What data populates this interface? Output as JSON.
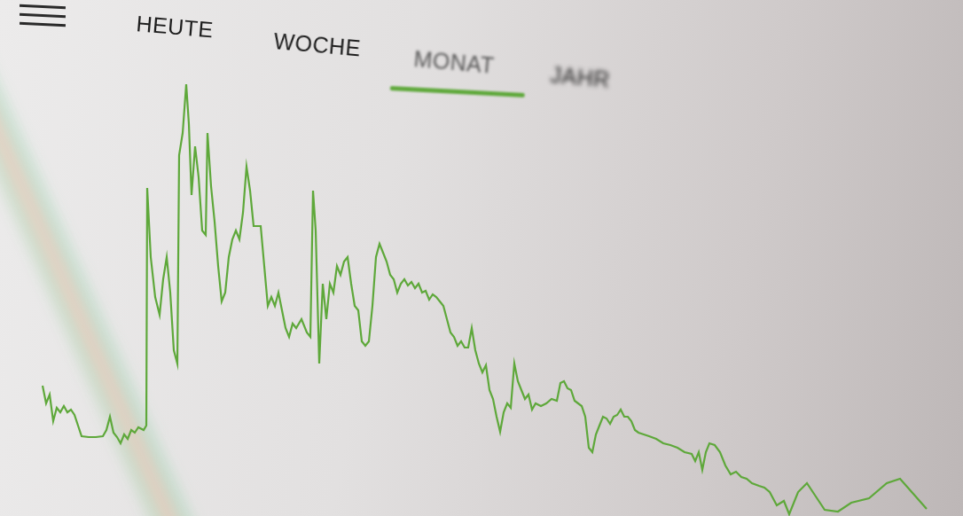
{
  "header": {
    "tabs": [
      "HEUTE",
      "WOCHE",
      "MONAT",
      "JAHR"
    ],
    "selected": "MONAT"
  },
  "chart_data": {
    "type": "line",
    "x": [
      48,
      52,
      56,
      60,
      64,
      68,
      72,
      76,
      80,
      84,
      88,
      92,
      100,
      108,
      116,
      120,
      124,
      128,
      132,
      136,
      140,
      144,
      148,
      152,
      156,
      162,
      165,
      166,
      170,
      175,
      180,
      184,
      188,
      192,
      196,
      200,
      202,
      206,
      210,
      213,
      216,
      220,
      224,
      228,
      232,
      234,
      238,
      242,
      246,
      250,
      254,
      258,
      262,
      266,
      270,
      274,
      278,
      282,
      286,
      290,
      294,
      298,
      302,
      306,
      310,
      314,
      318,
      322,
      326,
      330,
      334,
      340,
      346,
      350,
      353,
      356,
      360,
      364,
      368,
      372,
      376,
      380,
      384,
      388,
      392,
      396,
      400,
      404,
      408,
      412,
      416,
      420,
      424,
      428,
      432,
      436,
      440,
      444,
      448,
      452,
      456,
      460,
      464,
      468,
      472,
      476,
      480,
      484,
      488,
      492,
      496,
      500,
      504,
      508,
      512,
      516,
      520,
      524,
      528,
      532,
      536,
      540,
      544,
      548,
      552,
      556,
      560,
      564,
      568,
      572,
      576,
      580,
      584,
      588,
      592,
      596,
      600,
      604,
      610,
      616,
      622,
      628,
      632,
      636,
      640,
      644,
      648,
      652,
      656,
      660,
      664,
      668,
      672,
      676,
      680,
      684,
      688,
      692,
      696,
      700,
      704,
      708,
      712,
      716,
      720,
      726,
      732,
      740,
      748,
      756,
      764,
      772,
      780,
      784,
      788,
      792,
      796,
      800,
      806,
      812,
      818,
      824,
      830,
      836,
      842,
      848,
      856,
      862,
      868,
      876,
      884,
      890,
      900,
      910,
      920,
      930,
      945,
      960,
      980,
      1000,
      1015,
      1030,
      1045
    ],
    "values": [
      147,
      127,
      137,
      107,
      122,
      117,
      124,
      117,
      120,
      114,
      102,
      90,
      89,
      89,
      90,
      97,
      112,
      94,
      89,
      82,
      92,
      87,
      97,
      94,
      100,
      97,
      102,
      370,
      292,
      247,
      227,
      267,
      292,
      252,
      187,
      172,
      407,
      432,
      487,
      442,
      362,
      417,
      382,
      322,
      317,
      432,
      372,
      332,
      282,
      242,
      252,
      292,
      312,
      322,
      312,
      342,
      394,
      367,
      327,
      327,
      327,
      282,
      237,
      247,
      237,
      252,
      232,
      212,
      202,
      217,
      212,
      222,
      207,
      202,
      367,
      322,
      172,
      262,
      222,
      262,
      252,
      282,
      272,
      287,
      292,
      262,
      237,
      232,
      197,
      192,
      197,
      237,
      292,
      307,
      297,
      287,
      272,
      267,
      252,
      262,
      267,
      260,
      264,
      257,
      262,
      252,
      254,
      244,
      250,
      247,
      242,
      237,
      222,
      207,
      202,
      192,
      197,
      190,
      190,
      212,
      187,
      172,
      162,
      170,
      142,
      132,
      112,
      95,
      117,
      127,
      122,
      172,
      152,
      142,
      132,
      137,
      120,
      127,
      124,
      127,
      132,
      130,
      150,
      152,
      144,
      142,
      130,
      127,
      124,
      112,
      77,
      72,
      92,
      102,
      112,
      110,
      104,
      112,
      114,
      120,
      112,
      112,
      107,
      97,
      94,
      92,
      90,
      87,
      82,
      80,
      77,
      72,
      70,
      62,
      72,
      52,
      72,
      82,
      80,
      72,
      57,
      47,
      50,
      44,
      42,
      37,
      34,
      32,
      27,
      12,
      17,
      2,
      27,
      37,
      22,
      7,
      5,
      15,
      20,
      37,
      42,
      25,
      8
    ],
    "xlim": [
      0,
      1086
    ],
    "ylim": [
      0,
      582
    ],
    "color": "#5ea83a",
    "grid": false,
    "tick_labels": false
  }
}
